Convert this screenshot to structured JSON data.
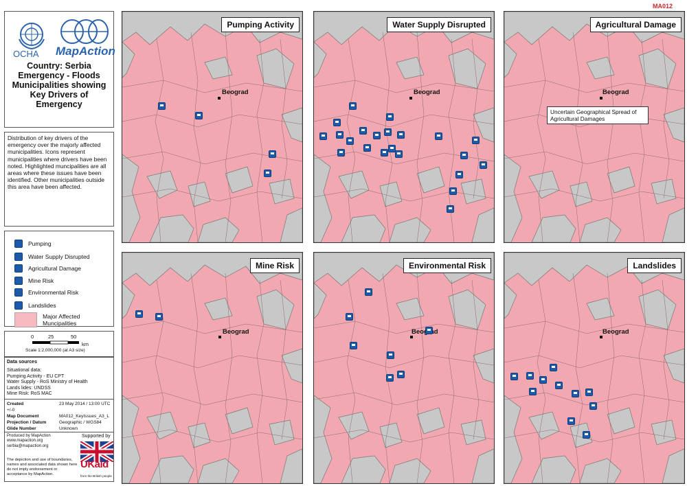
{
  "map_code": "MA012",
  "logos": {
    "ocha": "OCHA",
    "mapaction": "MapAction"
  },
  "title": "Country: Serbia Emergency - Floods Municipalities showing Key Drivers of Emergency",
  "description": "Distribution of key drivers of the emergency over the majorly affected municipalities.  Icons represent municipalities where drivers have been noted.  Highlighted muncipalities are all areas where these issues have been identified.  Other municipalities outside this area have been affected.",
  "legend": {
    "pumping": "Pumping",
    "water": "Water Supply Disrupted",
    "agri": "Agricultural Damage",
    "mine": "Mine Risk",
    "env": "Environmental Risk",
    "land": "Landslides",
    "affected": "Major Affected Muncipalities"
  },
  "scale": {
    "t0": "0",
    "t1": "25",
    "t2": "50",
    "unit": "km",
    "text": "Scale 1:2,000,000 (at A3 size)"
  },
  "sources": {
    "heading": "Data sources",
    "l1": "Situational data:",
    "l2": "Pumping Activity - EU CPT",
    "l3": "Water Supply - RoS Ministry of Health",
    "l4": "Lands lides:  UNDSS",
    "l5": "Mine Risk:  RoS MAC"
  },
  "meta": {
    "created_k": "Created",
    "created_v": "23 May 2014 / 13:00   UTC +/-0",
    "doc_k": "Map Document",
    "doc_v": "MA012_KeyIssues_A3_L",
    "proj_k": "Projection / Datum",
    "proj_v": "Geographic / WGS84",
    "glide_k": "Glide Number",
    "glide_v": "Unknown"
  },
  "produced": "Produced by MapAction www.mapaction.org serbia@mapaction.org",
  "supported": "Supported by",
  "ukaid": "UKaid",
  "ukaid_sub": "from the British people",
  "disclaimer": "The depiction and use of boundaries, names and associated data shown here do not imply endorsement or acceptance by MapAction.",
  "panels": {
    "p1": "Pumping Activity",
    "p2": "Water Supply Disrupted",
    "p3": "Agricultural Damage",
    "p4": "Mine Risk",
    "p5": "Environmental Risk",
    "p6": "Landslides"
  },
  "city": "Beograd",
  "agri_note": "Uncertain Geographical Spread of Agricultural Damages",
  "colors": {
    "affected": "#f2a8b0",
    "other": "#c8c8c8",
    "icon": "#1f5aa8"
  }
}
